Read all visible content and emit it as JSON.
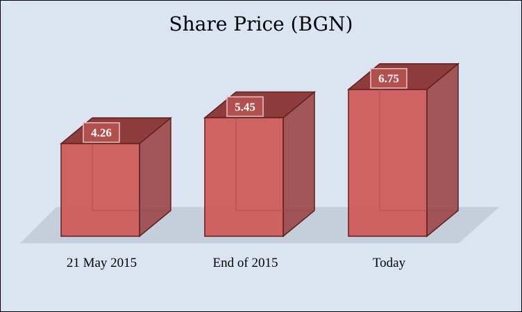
{
  "chart_data": {
    "type": "bar",
    "title": "Share Price (BGN)",
    "xlabel": "",
    "ylabel": "",
    "categories": [
      "21 May 2015",
      "End of 2015",
      "Today"
    ],
    "values": [
      4.26,
      5.45,
      6.75
    ],
    "data_labels": [
      "4.26",
      "5.45",
      "6.75"
    ],
    "ylim": [
      0,
      7.5
    ],
    "grid": false,
    "legend": "none",
    "style": "3d-column",
    "colors": {
      "background": "#dbe5f1",
      "floor": "#c5cfdc",
      "bar_front": "#cd5c5a",
      "bar_side": "#9c4a4a",
      "bar_top": "#8e3c3c",
      "bar_edge": "#5e1f1f",
      "label_box": "#b85450"
    }
  }
}
